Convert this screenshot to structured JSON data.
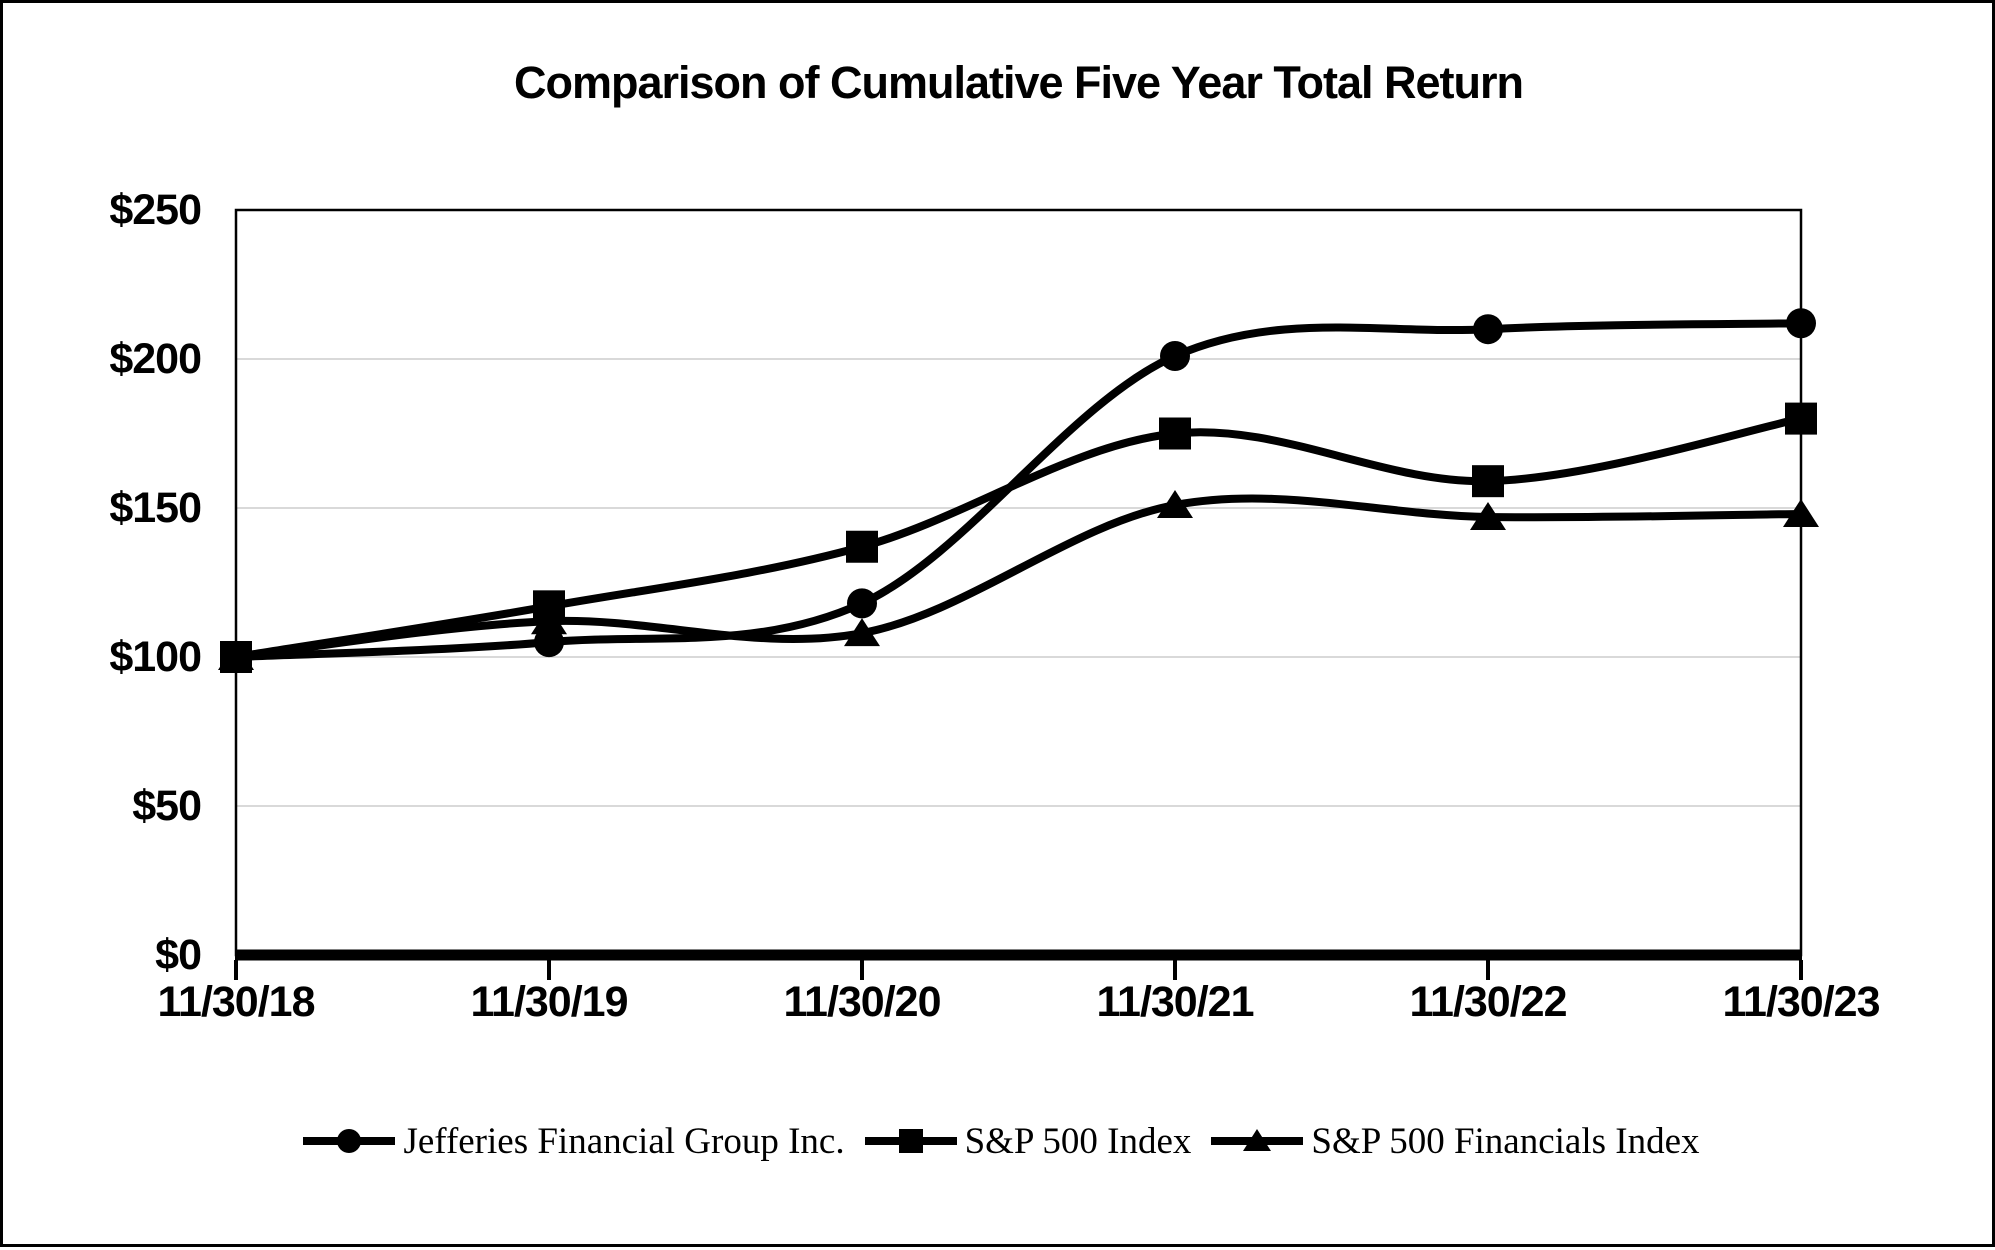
{
  "chart_data": {
    "type": "line",
    "title": "Comparison of Cumulative Five Year Total Return",
    "categories": [
      "11/30/18",
      "11/30/19",
      "11/30/20",
      "11/30/21",
      "11/30/22",
      "11/30/23"
    ],
    "series": [
      {
        "name": "Jefferies Financial Group Inc.",
        "marker": "circle",
        "values": [
          100,
          105,
          118,
          201,
          210,
          212
        ]
      },
      {
        "name": "S&P 500 Index",
        "marker": "square",
        "values": [
          100,
          117,
          137,
          175,
          159,
          180
        ]
      },
      {
        "name": "S&P 500 Financials Index",
        "marker": "triangle",
        "values": [
          100,
          112,
          108,
          151,
          147,
          148
        ]
      }
    ],
    "y_axis": {
      "min": 0,
      "max": 250,
      "tick_step": 50,
      "ticks": [
        {
          "value": 0,
          "label": "$0"
        },
        {
          "value": 50,
          "label": "$50"
        },
        {
          "value": 100,
          "label": "$100"
        },
        {
          "value": 150,
          "label": "$150"
        },
        {
          "value": 200,
          "label": "$200"
        },
        {
          "value": 250,
          "label": "$250"
        }
      ]
    },
    "xlabel": "",
    "ylabel": "",
    "grid": "horizontal",
    "legend_position": "bottom",
    "smooth_lines": true,
    "colors": {
      "series": "#000000",
      "grid": "#D9D9D9",
      "frame": "#000000",
      "background": "#FFFFFF"
    }
  }
}
